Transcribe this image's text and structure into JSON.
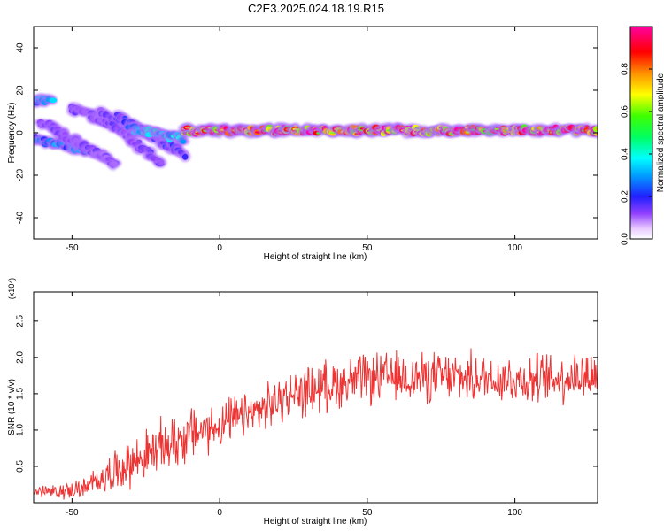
{
  "title": "C2E3.2025.024.18.19.R15",
  "chart_data": [
    {
      "type": "heatmap",
      "xlabel": "Height of straight line (km)",
      "ylabel": "Frequency (Hz)",
      "xlim": [
        -63,
        128
      ],
      "ylim": [
        -50,
        50
      ],
      "xticks": [
        -50,
        0,
        50,
        100
      ],
      "yticks": [
        -40,
        -20,
        0,
        20,
        40
      ],
      "colorbar": {
        "label": "Normalized spectral amplitude",
        "range": [
          0,
          1
        ],
        "ticks": [
          0.0,
          0.2,
          0.4,
          0.6,
          0.8
        ]
      },
      "features": [
        {
          "x_from": -63,
          "x_to": -57,
          "freq_from": 15,
          "freq_to": 15,
          "amplitude": 0.35
        },
        {
          "x_from": -63,
          "x_to": -45,
          "freq_from": -3,
          "freq_to": -8,
          "amplitude": 0.3
        },
        {
          "x_from": -60,
          "x_to": -35,
          "freq_from": 5,
          "freq_to": -15,
          "amplitude": 0.15
        },
        {
          "x_from": -50,
          "x_to": -30,
          "freq_from": 12,
          "freq_to": 0,
          "amplitude": 0.15
        },
        {
          "x_from": -40,
          "x_to": -20,
          "freq_from": 10,
          "freq_to": -15,
          "amplitude": 0.15
        },
        {
          "x_from": -35,
          "x_to": -12,
          "freq_from": 8,
          "freq_to": -10,
          "amplitude": 0.2
        },
        {
          "x_from": -30,
          "x_to": -12,
          "freq_from": 2,
          "freq_to": -3,
          "amplitude": 0.4
        },
        {
          "x_from": -12,
          "x_to": 128,
          "freq_from": 1,
          "freq_to": 1,
          "amplitude": 0.95
        }
      ]
    },
    {
      "type": "line",
      "xlabel": "Height of straight line (km)",
      "ylabel": "SNR (10 * v/v)",
      "ylabel_multiplier": "(x10⁴)",
      "xlim": [
        -63,
        128
      ],
      "ylim": [
        0,
        2.9
      ],
      "xticks": [
        -50,
        0,
        50,
        100
      ],
      "yticks": [
        0.5,
        1.0,
        1.5,
        2.0,
        2.5
      ],
      "yticklabels": [
        "0.5",
        "1.0",
        "1.5",
        "2.0",
        "2.5"
      ],
      "series": [
        {
          "color": "#ee3333",
          "x": [
            -63,
            -55,
            -45,
            -40,
            -35,
            -30,
            -25,
            -20,
            -15,
            -12,
            -10,
            -5,
            0,
            5,
            10,
            15,
            20,
            25,
            30,
            35,
            40,
            45,
            50,
            55,
            60,
            65,
            70,
            75,
            80,
            85,
            90,
            95,
            100,
            105,
            110,
            115,
            120,
            125,
            128
          ],
          "y": [
            0.15,
            0.15,
            0.2,
            0.35,
            0.45,
            0.55,
            0.65,
            0.75,
            0.85,
            0.9,
            0.95,
            1.0,
            1.05,
            1.15,
            1.2,
            1.3,
            1.4,
            1.5,
            1.55,
            1.6,
            1.65,
            1.68,
            1.7,
            1.72,
            1.72,
            1.72,
            1.72,
            1.73,
            1.72,
            1.72,
            1.72,
            1.72,
            1.7,
            1.7,
            1.7,
            1.72,
            1.75,
            1.75,
            1.75
          ],
          "noise": [
            0.08,
            0.08,
            0.12,
            0.18,
            0.22,
            0.26,
            0.28,
            0.3,
            0.32,
            0.32,
            0.3,
            0.28,
            0.25,
            0.25,
            0.25,
            0.25,
            0.25,
            0.26,
            0.28,
            0.28,
            0.28,
            0.28,
            0.28,
            0.28,
            0.28,
            0.28,
            0.28,
            0.28,
            0.28,
            0.28,
            0.28,
            0.28,
            0.28,
            0.28,
            0.28,
            0.28,
            0.3,
            0.3,
            0.3
          ]
        }
      ]
    }
  ]
}
